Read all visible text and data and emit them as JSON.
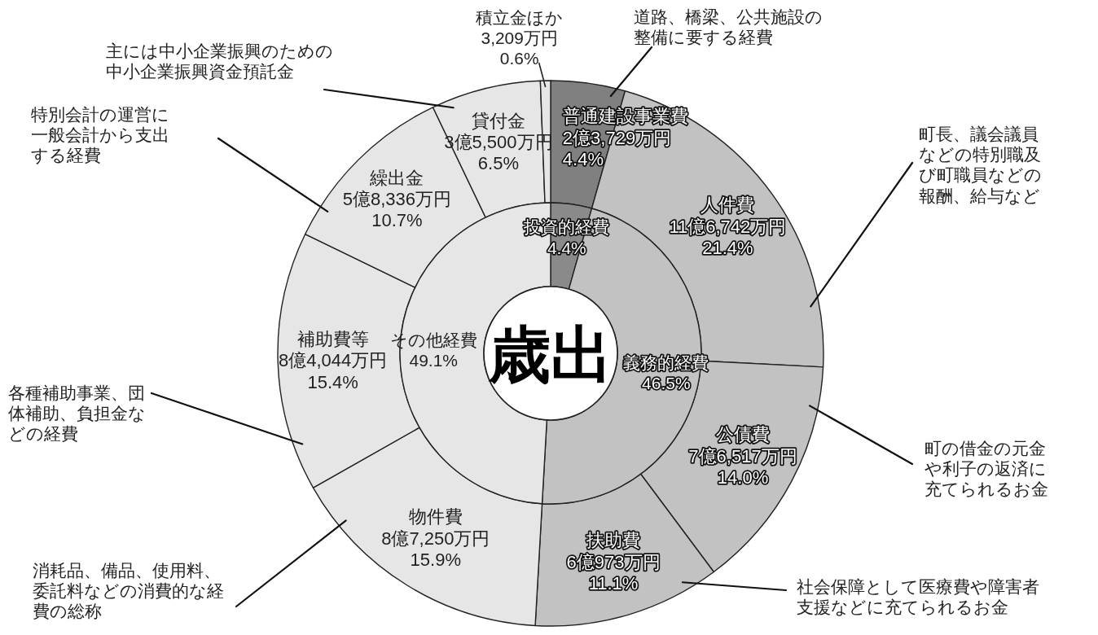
{
  "chart_data": [
    {
      "type": "donut",
      "categories": [
        "普通建設事業費",
        "人件費",
        "公債費",
        "扶助費",
        "物件費",
        "補助費等",
        "繰出金",
        "貸付金",
        "積立金ほか"
      ],
      "values": [
        4.4,
        21.4,
        14.0,
        11.1,
        15.9,
        15.4,
        10.7,
        6.5,
        0.6
      ],
      "value_labels": [
        "2億3,729万円\n4.4%",
        "11億6,742万円\n21.4%",
        "7億6,517万円\n14.0%",
        "6億973万円\n11.1%",
        "8億7,250万円\n15.9%",
        "8億4,044万円\n15.4%",
        "5億8,336万円\n10.7%",
        "3億5,500万円\n6.5%",
        "3,209万円\n0.6%"
      ],
      "colors": [
        "#808080",
        "#c2c2c2",
        "#c2c2c2",
        "#c2c2c2",
        "#e6e6e6",
        "#e6e6e6",
        "#e6e6e6",
        "#e6e6e6",
        "#e6e6e6"
      ],
      "annotations": [
        {
          "text": "道路、橋梁、公共施設の整備に要する経費",
          "x": "普通建設事業費"
        },
        {
          "text": "町長、議会議員などの特別職及び町職員などの報酬、給与など",
          "x": "人件費"
        },
        {
          "text": "町の借金の元金や利子の返済に充てられるお金",
          "x": "公債費"
        },
        {
          "text": "社会保障として医療費や障害者支援などに充てられるお金",
          "x": "扶助費"
        },
        {
          "text": "消耗品、備品、使用料、委託料などの消費的な経費の総称",
          "x": "物件費"
        },
        {
          "text": "各種補助事業、団体補助、負担金などの経費",
          "x": "補助費等"
        },
        {
          "text": "特別会計の運営に一般会計から支出する経費",
          "x": "繰出金"
        },
        {
          "text": "主には中小企業振興のための中小企業振興資金預託金",
          "x": "貸付金"
        }
      ]
    },
    {
      "type": "donut",
      "title": "歳出",
      "categories": [
        "投資的経費",
        "義務的経費",
        "その他経費"
      ],
      "values": [
        4.4,
        46.5,
        49.1
      ],
      "value_labels": [
        "4.4%",
        "46.5%",
        "49.1%"
      ],
      "colors": [
        "#8a8a8a",
        "#c2c2c2",
        "#e6e6e6"
      ]
    }
  ]
}
